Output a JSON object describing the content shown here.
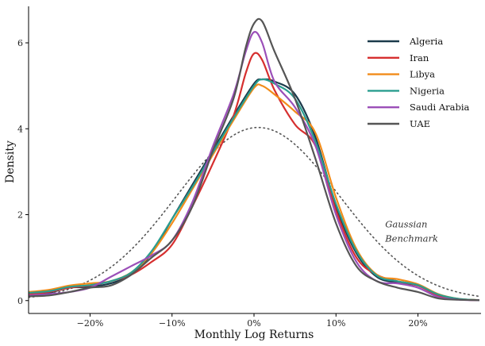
{
  "chart_data": {
    "type": "line",
    "title": "",
    "xlabel": "Monthly Log Returns",
    "ylabel": "Density",
    "xlim": [
      -0.275,
      0.275
    ],
    "ylim": [
      -0.3,
      6.85
    ],
    "x_ticks": [
      -0.2,
      -0.1,
      0.0,
      0.1,
      0.2
    ],
    "x_tick_labels": [
      "−20%",
      "−10%",
      "0%",
      "10%",
      "20%"
    ],
    "y_ticks": [
      0,
      2,
      4,
      6
    ],
    "y_tick_labels": [
      "0",
      "2",
      "4",
      "6"
    ],
    "grid": false,
    "legend_position": "top-right",
    "series": [
      {
        "name": "Algeria",
        "color": "#1b3a4b",
        "x": [
          -0.275,
          -0.25,
          -0.225,
          -0.2,
          -0.175,
          -0.15,
          -0.125,
          -0.1,
          -0.075,
          -0.05,
          -0.025,
          0.0,
          0.01,
          0.025,
          0.05,
          0.075,
          0.1,
          0.125,
          0.15,
          0.175,
          0.2,
          0.225,
          0.25,
          0.275
        ],
        "y": [
          0.1,
          0.18,
          0.3,
          0.32,
          0.4,
          0.6,
          1.1,
          1.9,
          2.7,
          3.5,
          4.3,
          5.05,
          5.15,
          5.1,
          4.8,
          3.8,
          2.2,
          1.1,
          0.55,
          0.42,
          0.35,
          0.12,
          0.03,
          0.01
        ]
      },
      {
        "name": "Iran",
        "color": "#d62f2f",
        "x": [
          -0.275,
          -0.25,
          -0.225,
          -0.2,
          -0.175,
          -0.15,
          -0.125,
          -0.1,
          -0.075,
          -0.05,
          -0.025,
          -0.01,
          0.0,
          0.01,
          0.025,
          0.05,
          0.075,
          0.1,
          0.125,
          0.15,
          0.175,
          0.2,
          0.225,
          0.25,
          0.275
        ],
        "y": [
          0.15,
          0.2,
          0.3,
          0.35,
          0.45,
          0.6,
          0.9,
          1.3,
          2.2,
          3.2,
          4.3,
          5.3,
          5.75,
          5.6,
          4.9,
          4.1,
          3.6,
          2.1,
          1.0,
          0.6,
          0.45,
          0.35,
          0.12,
          0.03,
          0.01
        ]
      },
      {
        "name": "Libya",
        "color": "#f28c1a",
        "x": [
          -0.275,
          -0.25,
          -0.225,
          -0.2,
          -0.175,
          -0.15,
          -0.125,
          -0.1,
          -0.075,
          -0.05,
          -0.025,
          0.0,
          0.01,
          0.025,
          0.05,
          0.075,
          0.1,
          0.125,
          0.15,
          0.175,
          0.2,
          0.225,
          0.25,
          0.275
        ],
        "y": [
          0.2,
          0.25,
          0.35,
          0.4,
          0.45,
          0.65,
          1.1,
          1.8,
          2.6,
          3.4,
          4.2,
          4.95,
          5.0,
          4.8,
          4.4,
          3.9,
          2.4,
          1.2,
          0.6,
          0.5,
          0.38,
          0.15,
          0.04,
          0.01
        ]
      },
      {
        "name": "Nigeria",
        "color": "#2a9d8f",
        "x": [
          -0.275,
          -0.25,
          -0.225,
          -0.2,
          -0.175,
          -0.15,
          -0.125,
          -0.1,
          -0.075,
          -0.05,
          -0.025,
          0.0,
          0.01,
          0.025,
          0.05,
          0.075,
          0.1,
          0.125,
          0.15,
          0.175,
          0.2,
          0.225,
          0.25,
          0.275
        ],
        "y": [
          0.18,
          0.22,
          0.32,
          0.36,
          0.45,
          0.65,
          1.15,
          1.9,
          2.65,
          3.45,
          4.25,
          5.0,
          5.15,
          5.05,
          4.7,
          3.7,
          2.25,
          1.15,
          0.58,
          0.45,
          0.36,
          0.14,
          0.04,
          0.01
        ]
      },
      {
        "name": "Saudi Arabia",
        "color": "#9b4fb8",
        "x": [
          -0.275,
          -0.25,
          -0.225,
          -0.2,
          -0.175,
          -0.15,
          -0.125,
          -0.1,
          -0.075,
          -0.05,
          -0.025,
          -0.01,
          0.0,
          0.01,
          0.025,
          0.05,
          0.075,
          0.1,
          0.125,
          0.15,
          0.175,
          0.2,
          0.225,
          0.25,
          0.275
        ],
        "y": [
          0.12,
          0.15,
          0.2,
          0.3,
          0.55,
          0.8,
          1.05,
          1.4,
          2.3,
          3.6,
          4.8,
          5.8,
          6.25,
          6.0,
          5.1,
          4.5,
          3.6,
          2.0,
          0.9,
          0.45,
          0.4,
          0.3,
          0.08,
          0.02,
          0.01
        ]
      },
      {
        "name": "UAE",
        "color": "#555555",
        "x": [
          -0.275,
          -0.25,
          -0.225,
          -0.2,
          -0.175,
          -0.15,
          -0.125,
          -0.1,
          -0.075,
          -0.05,
          -0.025,
          -0.01,
          0.0,
          0.01,
          0.025,
          0.05,
          0.075,
          0.1,
          0.125,
          0.15,
          0.175,
          0.2,
          0.225,
          0.25,
          0.275
        ],
        "y": [
          0.1,
          0.12,
          0.2,
          0.3,
          0.35,
          0.6,
          1.0,
          1.4,
          2.2,
          3.5,
          4.7,
          5.9,
          6.45,
          6.5,
          5.8,
          4.7,
          3.3,
          1.8,
          0.8,
          0.45,
          0.3,
          0.2,
          0.05,
          0.02,
          0.01
        ]
      }
    ],
    "benchmark": {
      "name": "Gaussian Benchmark",
      "color": "#555555",
      "style": "dotted",
      "mean": 0.005,
      "sd": 0.099,
      "annotation_lines": [
        "Gaussian",
        "Benchmark"
      ],
      "annotation_x": 0.16,
      "annotation_y": 1.7
    }
  }
}
